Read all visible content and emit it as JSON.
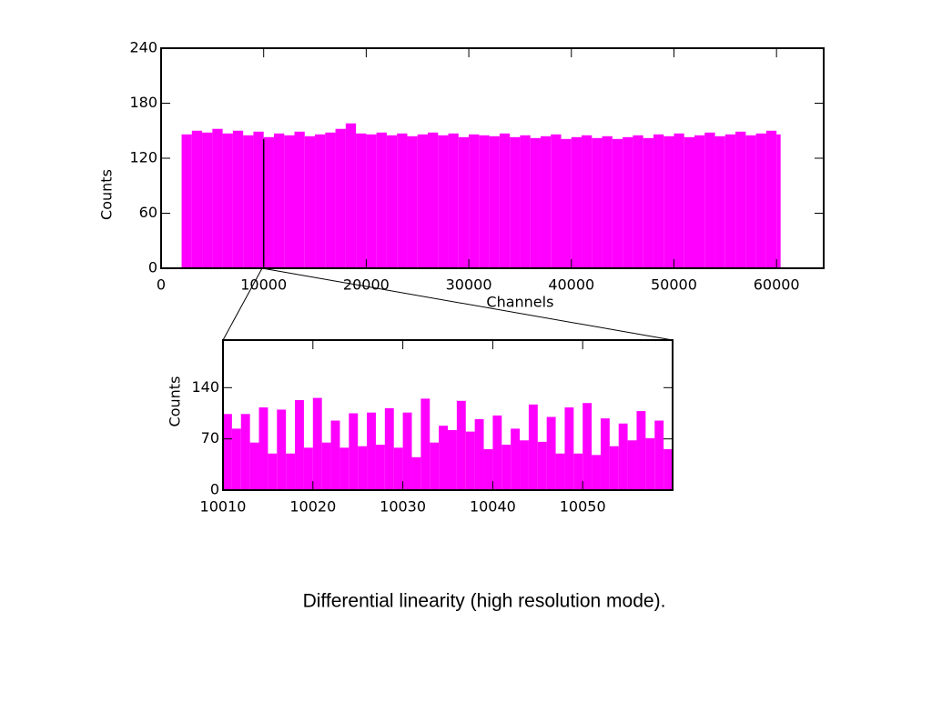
{
  "chart_data": [
    {
      "type": "histogram",
      "xlabel": "Channels",
      "ylabel": "Counts",
      "color": "#ff00ff",
      "xlim": [
        0,
        64600
      ],
      "ylim": [
        0,
        240
      ],
      "xticks": [
        0,
        10000,
        20000,
        30000,
        40000,
        50000,
        60000
      ],
      "yticks": [
        0,
        60,
        120,
        180,
        240
      ],
      "bins": [
        2000,
        3000,
        4000,
        5000,
        6000,
        7000,
        8000,
        9000,
        10000,
        11000,
        12000,
        13000,
        14000,
        15000,
        16000,
        17000,
        18000,
        19000,
        20000,
        21000,
        22000,
        23000,
        24000,
        25000,
        26000,
        27000,
        28000,
        29000,
        30000,
        31000,
        32000,
        33000,
        34000,
        35000,
        36000,
        37000,
        38000,
        39000,
        40000,
        41000,
        42000,
        43000,
        44000,
        45000,
        46000,
        47000,
        48000,
        49000,
        50000,
        51000,
        52000,
        53000,
        54000,
        55000,
        56000,
        57000,
        58000,
        59000,
        60000,
        60400
      ],
      "values": [
        146,
        150,
        148,
        152,
        147,
        150,
        145,
        149,
        143,
        147,
        145,
        149,
        144,
        146,
        148,
        152,
        158,
        147,
        146,
        148,
        145,
        147,
        144,
        146,
        148,
        145,
        147,
        143,
        146,
        145,
        144,
        147,
        143,
        145,
        142,
        144,
        146,
        141,
        143,
        145,
        142,
        144,
        141,
        143,
        145,
        142,
        146,
        144,
        147,
        143,
        145,
        148,
        144,
        146,
        149,
        145,
        147,
        150,
        146
      ],
      "zoom_line": 10000
    },
    {
      "type": "histogram",
      "ylabel": "Counts",
      "color": "#ff00ff",
      "xlim": [
        10010,
        10060
      ],
      "ylim": [
        0,
        205
      ],
      "xticks": [
        10010,
        10020,
        10030,
        10040,
        10050
      ],
      "yticks": [
        0,
        70,
        140
      ],
      "bins": [
        10010,
        10011,
        10012,
        10013,
        10014,
        10015,
        10016,
        10017,
        10018,
        10019,
        10020,
        10021,
        10022,
        10023,
        10024,
        10025,
        10026,
        10027,
        10028,
        10029,
        10030,
        10031,
        10032,
        10033,
        10034,
        10035,
        10036,
        10037,
        10038,
        10039,
        10040,
        10041,
        10042,
        10043,
        10044,
        10045,
        10046,
        10047,
        10048,
        10049,
        10050,
        10051,
        10052,
        10053,
        10054,
        10055,
        10056,
        10057,
        10058,
        10059,
        10060
      ],
      "values": [
        104,
        84,
        104,
        65,
        113,
        50,
        110,
        50,
        123,
        58,
        126,
        65,
        95,
        58,
        105,
        60,
        106,
        62,
        112,
        58,
        106,
        45,
        125,
        65,
        88,
        82,
        122,
        80,
        97,
        56,
        102,
        62,
        84,
        68,
        117,
        66,
        100,
        50,
        113,
        50,
        119,
        48,
        98,
        60,
        91,
        68,
        108,
        71,
        95,
        56
      ]
    }
  ],
  "caption": "Differential linearity (high resolution mode)."
}
